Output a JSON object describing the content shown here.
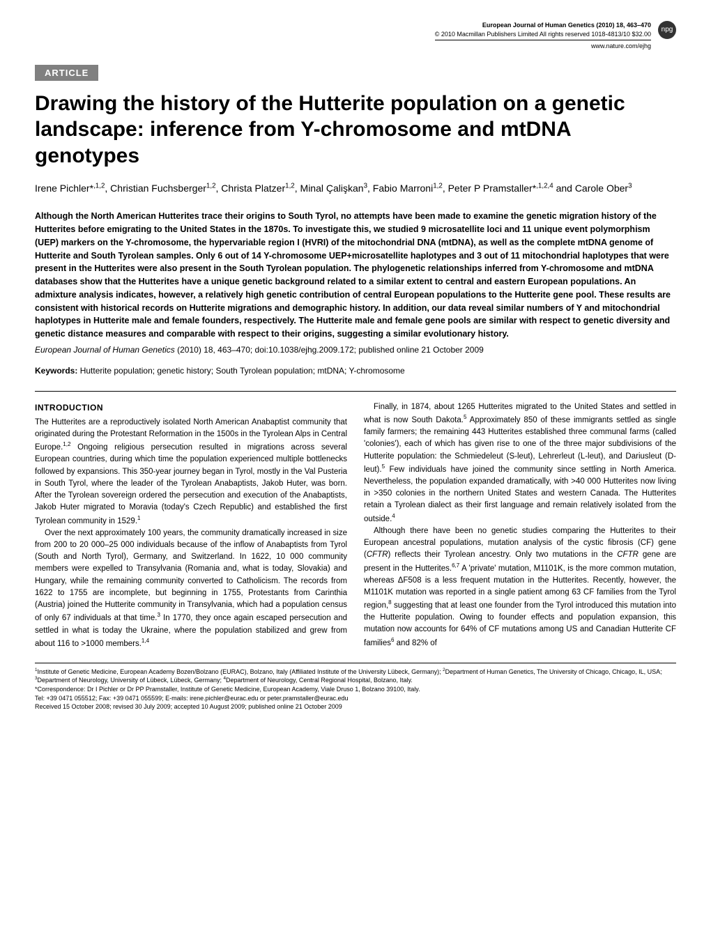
{
  "header": {
    "journal": "European Journal of Human Genetics (2010) 18, 463–470",
    "copyright": "© 2010 Macmillan Publishers Limited All rights reserved 1018-4813/10 $32.00",
    "url": "www.nature.com/ejhg",
    "badge": "npg"
  },
  "article_tag": "ARTICLE",
  "title": "Drawing the history of the Hutterite population on a genetic landscape: inference from Y-chromosome and mtDNA genotypes",
  "authors_html": "Irene Pichler*<sup>,1,2</sup>, Christian Fuchsberger<sup>1,2</sup>, Christa Platzer<sup>1,2</sup>, Minal Çalişkan<sup>3</sup>, Fabio Marroni<sup>1,2</sup>, Peter P Pramstaller*<sup>,1,2,4</sup> and Carole Ober<sup>3</sup>",
  "abstract": "Although the North American Hutterites trace their origins to South Tyrol, no attempts have been made to examine the genetic migration history of the Hutterites before emigrating to the United States in the 1870s. To investigate this, we studied 9 microsatellite loci and 11 unique event polymorphism (UEP) markers on the Y-chromosome, the hypervariable region I (HVRI) of the mitochondrial DNA (mtDNA), as well as the complete mtDNA genome of Hutterite and South Tyrolean samples. Only 6 out of 14 Y-chromosome UEP+microsatellite haplotypes and 3 out of 11 mitochondrial haplotypes that were present in the Hutterites were also present in the South Tyrolean population. The phylogenetic relationships inferred from Y-chromosome and mtDNA databases show that the Hutterites have a unique genetic background related to a similar extent to central and eastern European populations. An admixture analysis indicates, however, a relatively high genetic contribution of central European populations to the Hutterite gene pool. These results are consistent with historical records on Hutterite migrations and demographic history. In addition, our data reveal similar numbers of Y and mitochondrial haplotypes in Hutterite male and female founders, respectively. The Hutterite male and female gene pools are similar with respect to genetic diversity and genetic distance measures and comparable with respect to their origins, suggesting a similar evolutionary history.",
  "citation": {
    "journal": "European Journal of Human Genetics",
    "rest": " (2010) 18, 463–470; doi:10.1038/ejhg.2009.172; published online 21 October 2009"
  },
  "keywords_label": "Keywords:",
  "keywords": " Hutterite population; genetic history; South Tyrolean population; mtDNA; Y-chromosome",
  "section_heading": "INTRODUCTION",
  "col1": {
    "p1": "The Hutterites are a reproductively isolated North American Anabaptist community that originated during the Protestant Reformation in the 1500s in the Tyrolean Alps in Central Europe.<sup>1,2</sup> Ongoing religious persecution resulted in migrations across several European countries, during which time the population experienced multiple bottlenecks followed by expansions. This 350-year journey began in Tyrol, mostly in the Val Pusteria in South Tyrol, where the leader of the Tyrolean Anabaptists, Jakob Huter, was born. After the Tyrolean sovereign ordered the persecution and execution of the Anabaptists, Jakob Huter migrated to Moravia (today's Czech Republic) and established the first Tyrolean community in 1529.<sup>1</sup>",
    "p2": "Over the next approximately 100 years, the community dramatically increased in size from 200 to 20 000–25 000 individuals because of the inflow of Anabaptists from Tyrol (South and North Tyrol), Germany, and Switzerland. In 1622, 10 000 community members were expelled to Transylvania (Romania and, what is today, Slovakia) and Hungary, while the remaining community converted to Catholicism. The records from 1622 to 1755 are incomplete, but beginning in 1755, Protestants from Carinthia (Austria) joined the Hutterite community in Transylvania, which had a population census of only 67 individuals at that time.<sup>3</sup> In 1770, they once again escaped persecution and settled in what is today the Ukraine, where the population stabilized and grew from about 116 to >1000 members.<sup>1,4</sup>"
  },
  "col2": {
    "p1": "Finally, in 1874, about 1265 Hutterites migrated to the United States and settled in what is now South Dakota.<sup>5</sup> Approximately 850 of these immigrants settled as single family farmers; the remaining 443 Hutterites established three communal farms (called 'colonies'), each of which has given rise to one of the three major subdivisions of the Hutterite population: the Schmiedeleut (S-leut), Lehrerleut (L-leut), and Dariusleut (D-leut).<sup>5</sup> Few individuals have joined the community since settling in North America. Nevertheless, the population expanded dramatically, with >40 000 Hutterites now living in >350 colonies in the northern United States and western Canada. The Hutterites retain a Tyrolean dialect as their first language and remain relatively isolated from the outside.<sup>4</sup>",
    "p2": "Although there have been no genetic studies comparing the Hutterites to their European ancestral populations, mutation analysis of the cystic fibrosis (CF) gene (<span class=\"italic\">CFTR</span>) reflects their Tyrolean ancestry. Only two mutations in the <span class=\"italic\">CFTR</span> gene are present in the Hutterites.<sup>6,7</sup> A 'private' mutation, M1101K, is the more common mutation, whereas ΔF508 is a less frequent mutation in the Hutterites. Recently, however, the M1101K mutation was reported in a single patient among 63 CF families from the Tyrol region,<sup>8</sup> suggesting that at least one founder from the Tyrol introduced this mutation into the Hutterite population. Owing to founder effects and population expansion, this mutation now accounts for 64% of CF mutations among US and Canadian Hutterite CF families<sup>6</sup> and 82% of"
  },
  "footer": {
    "affiliations": "<sup>1</sup>Institute of Genetic Medicine, European Academy Bozen/Bolzano (EURAC), Bolzano, Italy (Affiliated Institute of the University Lübeck, Germany); <sup>2</sup>Department of Human Genetics, The University of Chicago, Chicago, IL, USA; <sup>3</sup>Department of Neurology, University of Lübeck, Lübeck, Germany; <sup>4</sup>Department of Neurology, Central Regional Hospital, Bolzano, Italy.",
    "correspondence": "*Correspondence: Dr I Pichler or Dr PP Pramstaller, Institute of Genetic Medicine, European Academy, Viale Druso 1, Bolzano 39100, Italy.",
    "contact": "Tel: +39 0471 055512; Fax: +39 0471 055599; E-mails: irene.pichler@eurac.edu or peter.pramstaller@eurac.edu",
    "received": "Received 15 October 2008; revised 30 July 2009; accepted 10 August 2009; published online 21 October 2009"
  }
}
